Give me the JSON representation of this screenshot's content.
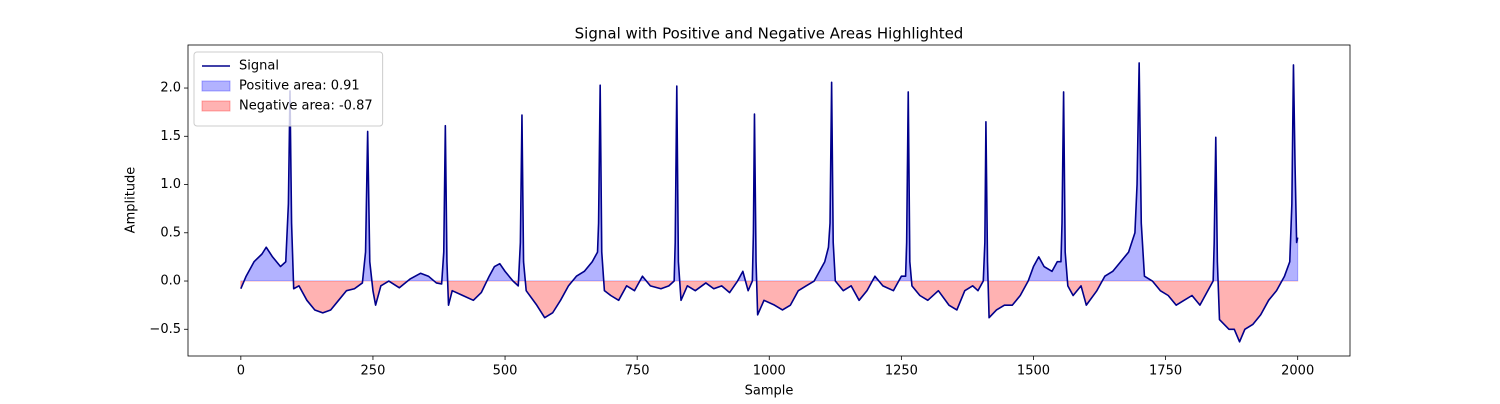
{
  "chart_data": {
    "type": "line",
    "title": "Signal with Positive and Negative Areas Highlighted",
    "xlabel": "Sample",
    "ylabel": "Amplitude",
    "xlim": [
      -100,
      2099
    ],
    "ylim": [
      -0.777,
      2.446
    ],
    "xticks": [
      0,
      250,
      500,
      750,
      1000,
      1250,
      1500,
      1750,
      2000
    ],
    "yticks": [
      {
        "value": -0.5,
        "label": "−0.5"
      },
      {
        "value": 0,
        "label": "0.0"
      },
      0.5,
      {
        "value": 1,
        "label": "1.0"
      },
      1.5,
      {
        "value": 2,
        "label": "2.0"
      }
    ],
    "grid": false,
    "legend": "upper left",
    "series": [
      {
        "name": "Signal",
        "color": "#00008b",
        "x": [
          0,
          10,
          25,
          40,
          48,
          60,
          75,
          85,
          90,
          93,
          96,
          100,
          110,
          125,
          140,
          155,
          170,
          185,
          200,
          215,
          230,
          236,
          240,
          244,
          250,
          255,
          265,
          280,
          300,
          320,
          340,
          355,
          370,
          380,
          384,
          387,
          390,
          393,
          400,
          420,
          440,
          455,
          470,
          480,
          490,
          500,
          515,
          525,
          529,
          532,
          535,
          540,
          560,
          575,
          590,
          605,
          620,
          635,
          650,
          665,
          675,
          677,
          680,
          683,
          688,
          700,
          715,
          730,
          745,
          760,
          775,
          795,
          810,
          820,
          822,
          825,
          828,
          833,
          845,
          860,
          880,
          895,
          910,
          925,
          940,
          950,
          960,
          968,
          970,
          972,
          975,
          978,
          990,
          1010,
          1025,
          1040,
          1055,
          1070,
          1085,
          1095,
          1105,
          1112,
          1115,
          1118,
          1121,
          1125,
          1140,
          1155,
          1170,
          1185,
          1200,
          1215,
          1235,
          1250,
          1258,
          1260,
          1263,
          1266,
          1270,
          1285,
          1300,
          1320,
          1340,
          1355,
          1370,
          1385,
          1395,
          1405,
          1408,
          1410,
          1413,
          1416,
          1430,
          1445,
          1460,
          1475,
          1490,
          1500,
          1510,
          1520,
          1535,
          1545,
          1552,
          1554,
          1557,
          1560,
          1565,
          1575,
          1590,
          1600,
          1620,
          1635,
          1650,
          1665,
          1680,
          1692,
          1696,
          1700,
          1704,
          1710,
          1725,
          1740,
          1755,
          1770,
          1785,
          1800,
          1815,
          1830,
          1840,
          1842,
          1845,
          1848,
          1852,
          1870,
          1880,
          1890,
          1900,
          1915,
          1930,
          1945,
          1960,
          1975,
          1985,
          1989,
          1992,
          1995,
          1998,
          2000
        ],
        "values": [
          -0.08,
          0.05,
          0.2,
          0.28,
          0.35,
          0.25,
          0.15,
          0.2,
          0.8,
          1.97,
          0.6,
          -0.08,
          -0.05,
          -0.2,
          -0.3,
          -0.33,
          -0.3,
          -0.2,
          -0.1,
          -0.08,
          -0.02,
          0.3,
          1.55,
          0.2,
          -0.1,
          -0.25,
          -0.05,
          0.0,
          -0.07,
          0.02,
          0.08,
          0.05,
          -0.02,
          -0.03,
          0.3,
          1.61,
          0.2,
          -0.25,
          -0.1,
          -0.15,
          -0.2,
          -0.12,
          0.05,
          0.15,
          0.18,
          0.1,
          0.0,
          -0.05,
          0.4,
          1.72,
          0.2,
          -0.1,
          -0.25,
          -0.38,
          -0.33,
          -0.2,
          -0.05,
          0.05,
          0.1,
          0.2,
          0.3,
          0.6,
          2.03,
          0.3,
          -0.1,
          -0.15,
          -0.2,
          -0.05,
          -0.1,
          0.05,
          -0.05,
          -0.08,
          -0.05,
          0.0,
          0.4,
          2.02,
          0.2,
          -0.2,
          -0.05,
          -0.1,
          -0.02,
          -0.08,
          -0.05,
          -0.12,
          0.0,
          0.1,
          -0.1,
          0.0,
          0.5,
          1.73,
          0.2,
          -0.35,
          -0.2,
          -0.25,
          -0.3,
          -0.25,
          -0.1,
          -0.05,
          0.0,
          0.1,
          0.2,
          0.35,
          0.6,
          2.06,
          0.4,
          0.0,
          -0.1,
          -0.05,
          -0.2,
          -0.1,
          0.05,
          -0.05,
          -0.1,
          0.05,
          0.05,
          0.4,
          1.96,
          0.2,
          -0.05,
          -0.15,
          -0.2,
          -0.1,
          -0.25,
          -0.3,
          -0.1,
          -0.05,
          -0.1,
          0.0,
          0.4,
          1.65,
          0.2,
          -0.38,
          -0.3,
          -0.25,
          -0.25,
          -0.15,
          0.0,
          0.15,
          0.25,
          0.15,
          0.1,
          0.2,
          0.2,
          0.6,
          1.96,
          0.3,
          -0.05,
          -0.15,
          -0.05,
          -0.25,
          -0.1,
          0.05,
          0.1,
          0.2,
          0.3,
          0.5,
          1.0,
          2.26,
          0.6,
          0.05,
          0.0,
          -0.1,
          -0.15,
          -0.25,
          -0.2,
          -0.15,
          -0.25,
          -0.1,
          0.0,
          0.4,
          1.49,
          0.2,
          -0.4,
          -0.5,
          -0.5,
          -0.63,
          -0.5,
          -0.45,
          -0.35,
          -0.2,
          -0.1,
          0.05,
          0.2,
          0.8,
          2.24,
          1.2,
          0.4,
          0.45
        ]
      }
    ],
    "areas": [
      {
        "name": "Positive area: 0.91",
        "color": "#0000ff",
        "side": "positive"
      },
      {
        "name": "Negative area: -0.87",
        "color": "#ff0000",
        "side": "negative"
      }
    ]
  }
}
